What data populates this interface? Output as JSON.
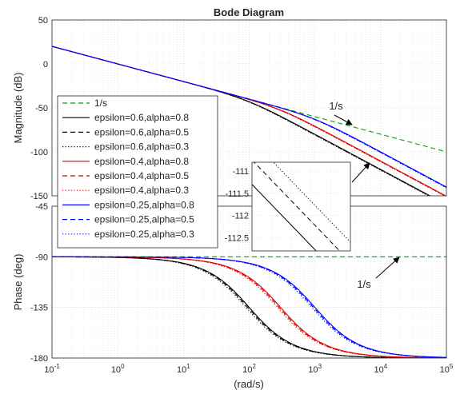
{
  "chart_data": {
    "type": "line",
    "title": "Bode Diagram",
    "xlabel": "(rad/s)",
    "xscale": "log",
    "xlim": [
      0.1,
      100000
    ],
    "x_ticks": [
      {
        "value": 0.1,
        "base": "10",
        "exp": "-1"
      },
      {
        "value": 1,
        "base": "10",
        "exp": "0"
      },
      {
        "value": 10,
        "base": "10",
        "exp": "1"
      },
      {
        "value": 100,
        "base": "10",
        "exp": "2"
      },
      {
        "value": 1000,
        "base": "10",
        "exp": "3"
      },
      {
        "value": 10000,
        "base": "10",
        "exp": "4"
      },
      {
        "value": 100000,
        "base": "10",
        "exp": "5"
      }
    ],
    "grid": true,
    "magnitude": {
      "ylabel": "Magnitude (dB)",
      "ylim": [
        -150,
        50
      ],
      "yticks": [
        50,
        0,
        -50,
        -100,
        -150
      ]
    },
    "phase": {
      "ylabel": "Phase (deg)",
      "ylim": [
        -180,
        -45
      ],
      "yticks": [
        -45,
        -90,
        -135,
        -180
      ]
    },
    "inset": {
      "description": "zoom of magnitude curves",
      "ylim": [
        -112.8,
        -110.8
      ],
      "yticks": [
        "-111",
        "-111.5",
        "-112",
        "-112.5"
      ]
    },
    "series": [
      {
        "name": "1/s",
        "color": "#00a000",
        "dash": "dashed",
        "corner": null
      },
      {
        "name": "epsilon=0.6,alpha=0.8",
        "color": "#000000",
        "dash": "solid",
        "corner": 100,
        "inset_offset": -0.55
      },
      {
        "name": "epsilon=0.6,alpha=0.5",
        "color": "#000000",
        "dash": "dashed",
        "corner": 95,
        "inset_offset": 0.0
      },
      {
        "name": "epsilon=0.6,alpha=0.3",
        "color": "#000000",
        "dash": "dotted",
        "corner": 90,
        "inset_offset": 0.45
      },
      {
        "name": "epsilon=0.4,alpha=0.8",
        "color": "#e00000",
        "dash": "solid",
        "corner": 300
      },
      {
        "name": "epsilon=0.4,alpha=0.5",
        "color": "#e00000",
        "dash": "dashed",
        "corner": 285
      },
      {
        "name": "epsilon=0.4,alpha=0.3",
        "color": "#e00000",
        "dash": "dotted",
        "corner": 270
      },
      {
        "name": "epsilon=0.25,alpha=0.8",
        "color": "#0000ff",
        "dash": "solid",
        "corner": 1000
      },
      {
        "name": "epsilon=0.25,alpha=0.5",
        "color": "#0000ff",
        "dash": "dashed",
        "corner": 950
      },
      {
        "name": "epsilon=0.25,alpha=0.3",
        "color": "#0000ff",
        "dash": "dotted",
        "corner": 900
      }
    ],
    "annotations": [
      "1/s",
      "1/s"
    ],
    "legend_position": "left"
  }
}
